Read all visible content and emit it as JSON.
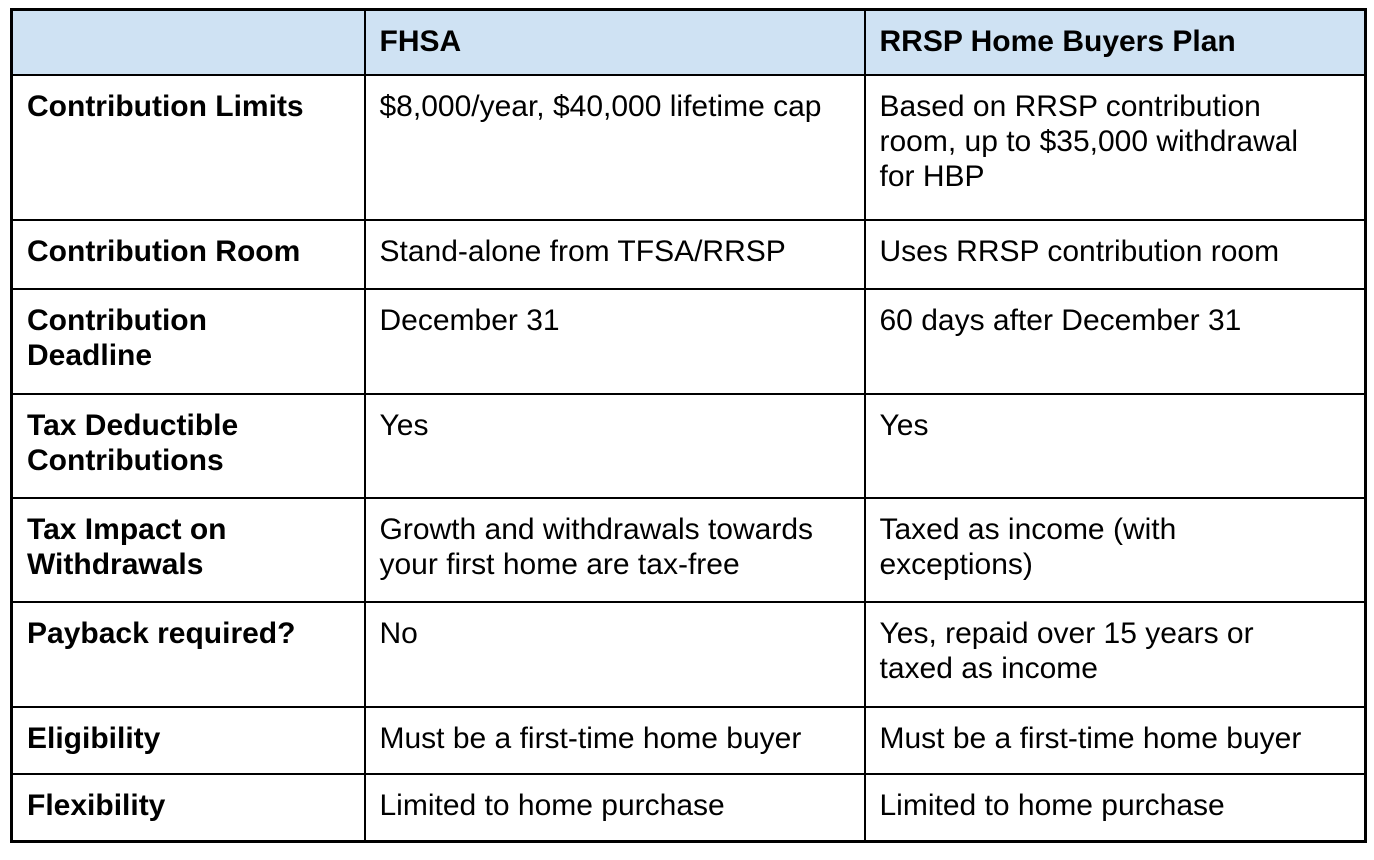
{
  "table": {
    "columns": [
      "",
      "FHSA",
      "RRSP Home Buyers Plan"
    ],
    "rows": [
      {
        "label": "Contribution Limits",
        "fhsa": "$8,000/year, $40,000 lifetime cap",
        "rrsp": "Based on RRSP contribution\nroom, up to $35,000 withdrawal\nfor HBP"
      },
      {
        "label": "Contribution Room",
        "fhsa": "Stand-alone from TFSA/RRSP",
        "rrsp": "Uses RRSP contribution room"
      },
      {
        "label": "Contribution\nDeadline",
        "fhsa": "December 31",
        "rrsp": "60 days after December 31"
      },
      {
        "label": "Tax Deductible\nContributions",
        "fhsa": "Yes",
        "rrsp": "Yes"
      },
      {
        "label": "Tax Impact on\nWithdrawals",
        "fhsa": "Growth and withdrawals towards\nyour first home are tax-free",
        "rrsp": "Taxed as income (with\nexceptions)"
      },
      {
        "label": "Payback required?",
        "fhsa": "No",
        "rrsp": "Yes, repaid over 15 years or\ntaxed as income"
      },
      {
        "label": "Eligibility",
        "fhsa": "Must be a first-time home buyer",
        "rrsp": "Must be a first-time home buyer"
      },
      {
        "label": "Flexibility",
        "fhsa": "Limited to home purchase",
        "rrsp": "Limited to home purchase"
      }
    ],
    "colors": {
      "header_bg": "#cfe2f3",
      "border": "#000000",
      "text": "#000000",
      "body_bg": "#ffffff"
    }
  }
}
